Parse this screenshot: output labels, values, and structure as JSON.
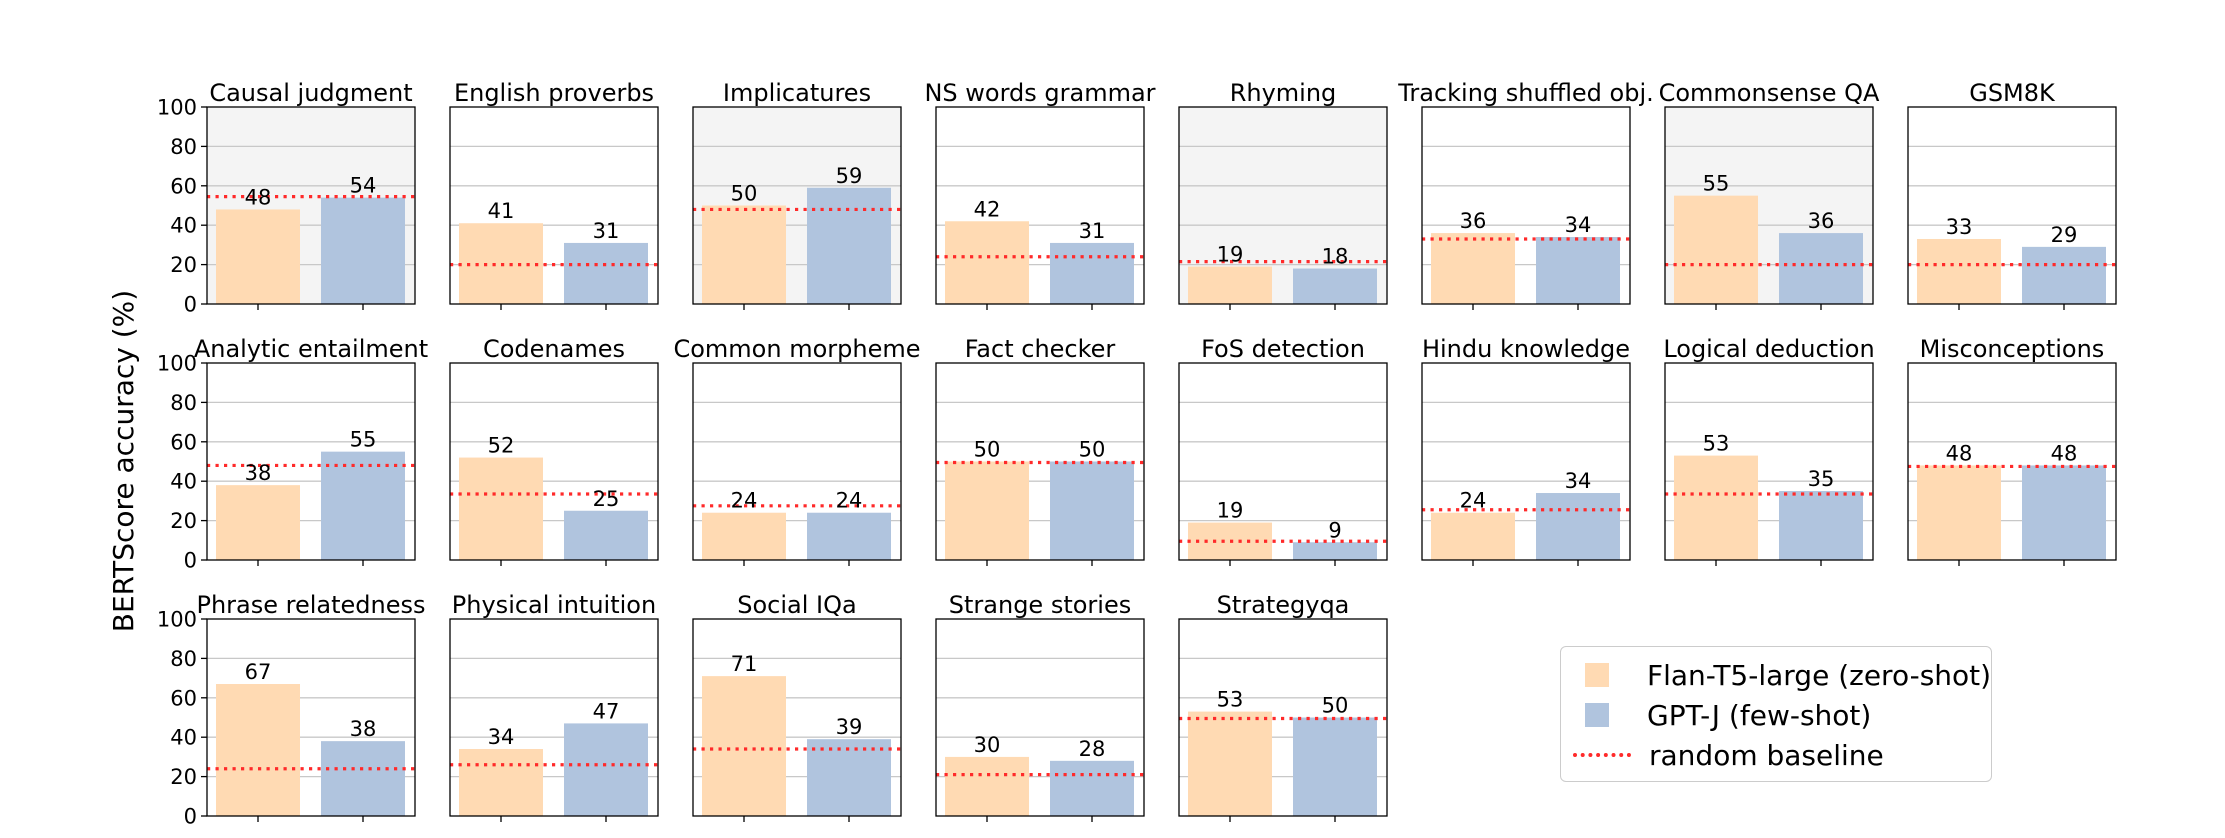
{
  "chart_data": {
    "type": "bar",
    "ylabel": "BERTScore accuracy (%)",
    "ylim": [
      0,
      100
    ],
    "yticks": [
      0,
      20,
      40,
      60,
      80,
      100
    ],
    "grid": "horizontal",
    "legend_position": "bottom-right",
    "series": [
      {
        "name": "Flan-T5-large (zero-shot)",
        "color": "#ffdab3"
      },
      {
        "name": "GPT-J (few-shot)",
        "color": "#b0c4de"
      },
      {
        "name": "random baseline",
        "color": "#ff2a2a",
        "style": "dotted"
      }
    ],
    "panels": [
      {
        "title": "Causal judgment",
        "values": [
          48,
          54
        ],
        "baseline": 54.5,
        "shaded": true
      },
      {
        "title": "English proverbs",
        "values": [
          41,
          31
        ],
        "baseline": 20,
        "shaded": false
      },
      {
        "title": "Implicatures",
        "values": [
          50,
          59
        ],
        "baseline": 48,
        "shaded": true
      },
      {
        "title": "NS words grammar",
        "values": [
          42,
          31
        ],
        "baseline": 24,
        "shaded": false
      },
      {
        "title": "Rhyming",
        "values": [
          19,
          18
        ],
        "baseline": 21.5,
        "shaded": true
      },
      {
        "title": "Tracking shuffled obj.",
        "values": [
          36,
          34
        ],
        "baseline": 33,
        "shaded": false
      },
      {
        "title": "Commonsense QA",
        "values": [
          55,
          36
        ],
        "baseline": 20,
        "shaded": true
      },
      {
        "title": "GSM8K",
        "values": [
          33,
          29
        ],
        "baseline": 20,
        "shaded": false
      },
      {
        "title": "Analytic entailment",
        "values": [
          38,
          55
        ],
        "baseline": 48,
        "shaded": false
      },
      {
        "title": "Codenames",
        "values": [
          52,
          25
        ],
        "baseline": 33.5,
        "shaded": false
      },
      {
        "title": "Common morpheme",
        "values": [
          24,
          24
        ],
        "baseline": 27.5,
        "shaded": false
      },
      {
        "title": "Fact checker",
        "values": [
          50,
          50
        ],
        "baseline": 49.5,
        "shaded": false
      },
      {
        "title": "FoS detection",
        "values": [
          19,
          9
        ],
        "baseline": 9.5,
        "shaded": false
      },
      {
        "title": "Hindu knowledge",
        "values": [
          24,
          34
        ],
        "baseline": 25.5,
        "shaded": false
      },
      {
        "title": "Logical deduction",
        "values": [
          53,
          35
        ],
        "baseline": 33.5,
        "shaded": false
      },
      {
        "title": "Misconceptions",
        "values": [
          48,
          48
        ],
        "baseline": 47.5,
        "shaded": false
      },
      {
        "title": "Phrase relatedness",
        "values": [
          67,
          38
        ],
        "baseline": 24,
        "shaded": false
      },
      {
        "title": "Physical intuition",
        "values": [
          34,
          47
        ],
        "baseline": 26,
        "shaded": false
      },
      {
        "title": "Social IQa",
        "values": [
          71,
          39
        ],
        "baseline": 34,
        "shaded": false
      },
      {
        "title": "Strange stories",
        "values": [
          30,
          28
        ],
        "baseline": 21,
        "shaded": false
      },
      {
        "title": "Strategyqa",
        "values": [
          53,
          50
        ],
        "baseline": 49.5,
        "shaded": false
      }
    ]
  }
}
